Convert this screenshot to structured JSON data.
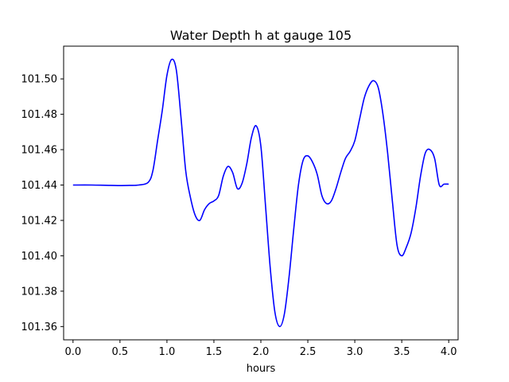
{
  "chart_data": {
    "type": "line",
    "title": "Water Depth h at gauge 105",
    "xlabel": "hours",
    "ylabel": "",
    "xlim": [
      -0.1,
      4.1
    ],
    "ylim": [
      101.3525,
      101.5185
    ],
    "grid": false,
    "xticks": [
      0.0,
      0.5,
      1.0,
      1.5,
      2.0,
      2.5,
      3.0,
      3.5,
      4.0
    ],
    "xtick_labels": [
      "0.0",
      "0.5",
      "1.0",
      "1.5",
      "2.0",
      "2.5",
      "3.0",
      "3.5",
      "4.0"
    ],
    "yticks": [
      101.36,
      101.38,
      101.4,
      101.42,
      101.44,
      101.46,
      101.48,
      101.5
    ],
    "ytick_labels": [
      "101.36",
      "101.38",
      "101.40",
      "101.42",
      "101.44",
      "101.46",
      "101.48",
      "101.50"
    ],
    "series": [
      {
        "color": "#0000ff",
        "x": [
          0.0,
          0.2,
          0.4,
          0.5,
          0.6,
          0.7,
          0.8,
          0.85,
          0.9,
          0.95,
          1.0,
          1.05,
          1.1,
          1.15,
          1.2,
          1.25,
          1.3,
          1.35,
          1.4,
          1.45,
          1.5,
          1.55,
          1.6,
          1.65,
          1.7,
          1.75,
          1.8,
          1.85,
          1.9,
          1.95,
          2.0,
          2.05,
          2.1,
          2.15,
          2.2,
          2.25,
          2.3,
          2.35,
          2.4,
          2.45,
          2.5,
          2.55,
          2.6,
          2.65,
          2.7,
          2.75,
          2.8,
          2.85,
          2.9,
          2.95,
          3.0,
          3.05,
          3.1,
          3.15,
          3.2,
          3.25,
          3.3,
          3.35,
          3.4,
          3.45,
          3.5,
          3.55,
          3.6,
          3.65,
          3.7,
          3.75,
          3.8,
          3.85,
          3.9,
          3.95,
          4.0
        ],
        "y": [
          101.44,
          101.44,
          101.4398,
          101.4397,
          101.4398,
          101.44,
          101.4415,
          101.448,
          101.465,
          101.482,
          101.502,
          101.511,
          101.505,
          101.478,
          101.448,
          101.433,
          101.423,
          101.42,
          101.426,
          101.4295,
          101.431,
          101.434,
          101.445,
          101.4505,
          101.447,
          101.438,
          101.441,
          101.452,
          101.467,
          101.4735,
          101.462,
          101.428,
          101.393,
          101.368,
          101.36,
          101.367,
          101.388,
          101.415,
          101.44,
          101.454,
          101.4565,
          101.453,
          101.446,
          101.434,
          101.4295,
          101.431,
          101.438,
          101.447,
          101.455,
          101.459,
          101.465,
          101.477,
          101.489,
          101.496,
          101.499,
          101.495,
          101.48,
          101.458,
          101.431,
          101.406,
          101.4,
          101.405,
          101.413,
          101.427,
          101.445,
          101.458,
          101.46,
          101.455,
          101.44,
          101.4405,
          101.4405
        ]
      }
    ]
  }
}
